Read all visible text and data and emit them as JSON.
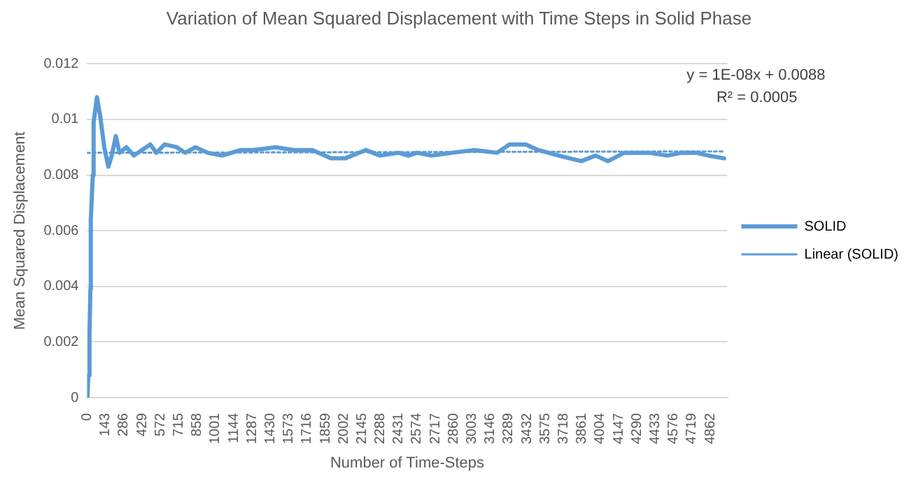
{
  "chart_data": {
    "type": "line",
    "title": "Variation of Mean Squared Displacement with Time Steps in Solid Phase",
    "xlabel": "Number of Time-Steps",
    "ylabel": "Mean Squared Displacement",
    "xlim": [
      0,
      4995
    ],
    "xticks": [
      0,
      143,
      286,
      429,
      572,
      715,
      858,
      1001,
      1144,
      1287,
      1430,
      1573,
      1716,
      1859,
      2002,
      2145,
      2288,
      2431,
      2574,
      2717,
      2860,
      3003,
      3146,
      3289,
      3432,
      3575,
      3718,
      3861,
      4004,
      4147,
      4290,
      4433,
      4576,
      4719,
      4862
    ],
    "ylim": [
      0,
      0.012
    ],
    "yticks": [
      0,
      0.002,
      0.004,
      0.006,
      0.008,
      0.01,
      0.012
    ],
    "grid": "y",
    "legend": "right",
    "marker": "none",
    "series": [
      {
        "name": "SOLID",
        "color": "#5b9bd5",
        "line_style": "solid",
        "x": [
          3,
          10,
          19,
          26,
          29,
          45,
          51,
          77,
          103,
          134,
          166,
          192,
          224,
          253,
          307,
          365,
          493,
          541,
          605,
          701,
          765,
          845,
          941,
          1054,
          1198,
          1294,
          1470,
          1614,
          1758,
          1902,
          2014,
          2174,
          2286,
          2430,
          2507,
          2574,
          2687,
          2846,
          3023,
          3199,
          3295,
          3423,
          3519,
          3679,
          3855,
          3967,
          4063,
          4191,
          4383,
          4527,
          4640,
          4752,
          4848,
          4970
        ],
        "values": [
          0,
          0.0008,
          0.0023,
          0.0039,
          0.0064,
          0.008,
          0.0099,
          0.0108,
          0.0101,
          0.009,
          0.0083,
          0.0087,
          0.0094,
          0.0088,
          0.009,
          0.0087,
          0.0091,
          0.0088,
          0.0091,
          0.009,
          0.0088,
          0.009,
          0.0088,
          0.0087,
          0.0089,
          0.0089,
          0.009,
          0.0089,
          0.0089,
          0.0086,
          0.0086,
          0.0089,
          0.0087,
          0.0088,
          0.0087,
          0.0088,
          0.0087,
          0.0088,
          0.0089,
          0.0088,
          0.0091,
          0.0091,
          0.0089,
          0.0087,
          0.0085,
          0.0087,
          0.0085,
          0.0088,
          0.0088,
          0.0087,
          0.0088,
          0.0088,
          0.0087,
          0.0086
        ]
      },
      {
        "name": "Linear (SOLID)",
        "type": "line",
        "color": "#5b9bd5",
        "line_style": "dotted",
        "x": [
          0,
          4970
        ],
        "values": [
          0.0088,
          0.00885
        ]
      }
    ],
    "annotations": [
      "y = 1E-08x + 0.0088",
      "R² = 0.0005"
    ]
  }
}
